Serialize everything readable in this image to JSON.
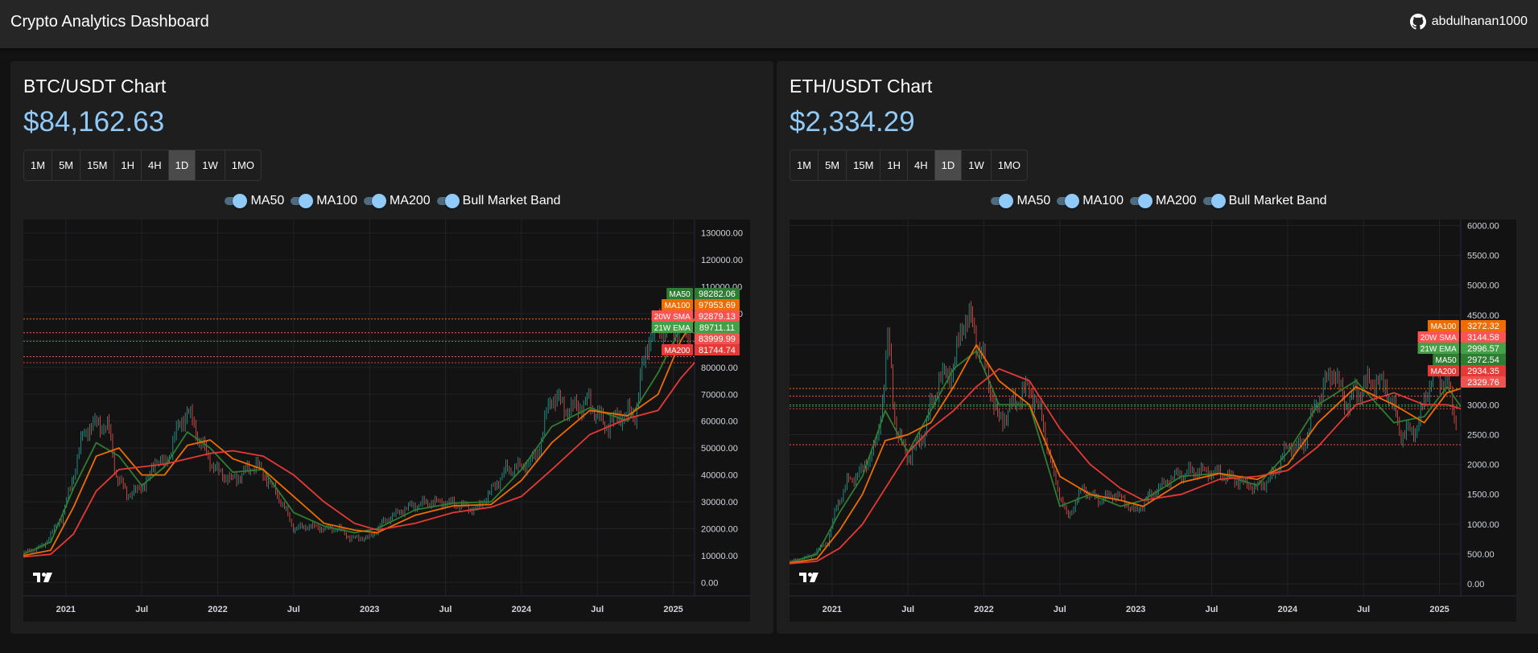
{
  "header": {
    "title": "Crypto Analytics Dashboard",
    "github_icon": "github-icon",
    "username": "abdulhanan1000"
  },
  "timeframes": [
    "1M",
    "5M",
    "15M",
    "1H",
    "4H",
    "1D",
    "1W",
    "1MO"
  ],
  "active_timeframe": "1D",
  "indicator_toggles": [
    "MA50",
    "MA100",
    "MA200",
    "Bull Market Band"
  ],
  "colors": {
    "background": "#121212",
    "card": "#1e1e1e",
    "price": "#90caf9",
    "up": "#26a69a",
    "down": "#ef5350",
    "ma50": "#2e7d32",
    "ma100": "#ef6c00",
    "ma200": "#e53935",
    "sma20w": "#ff5252",
    "ema21w": "#43a047"
  },
  "chart_data": [
    {
      "type": "line",
      "title": "BTC/USDT Chart",
      "price": "$84,162.63",
      "x_tick_labels": [
        "2021",
        "Jul",
        "2022",
        "Jul",
        "2023",
        "Jul",
        "2024",
        "Jul",
        "2025"
      ],
      "y_tick_labels": [
        "130000.00",
        "120000.00",
        "110000.00",
        "100000.00",
        "90000.00",
        "80000.00",
        "70000.00",
        "60000.00",
        "50000.00",
        "40000.00",
        "30000.00",
        "20000.00",
        "10000.00",
        "0.00"
      ],
      "ylim": [
        -5000,
        135000
      ],
      "grid": true,
      "series": [
        {
          "name": "Price",
          "x": [
            2020.72,
            2020.85,
            2020.97,
            2021.03,
            2021.08,
            2021.13,
            2021.2,
            2021.28,
            2021.33,
            2021.4,
            2021.47,
            2021.55,
            2021.6,
            2021.65,
            2021.72,
            2021.8,
            2021.85,
            2021.93,
            2022.0,
            2022.1,
            2022.25,
            2022.33,
            2022.42,
            2022.5,
            2022.6,
            2022.7,
            2022.8,
            2022.87,
            2023.0,
            2023.1,
            2023.25,
            2023.4,
            2023.55,
            2023.7,
            2023.8,
            2023.9,
            2024.0,
            2024.1,
            2024.2,
            2024.3,
            2024.45,
            2024.55,
            2024.65,
            2024.75,
            2024.83,
            2024.9,
            2025.0,
            2025.08,
            2025.14
          ],
          "y": [
            11000,
            13500,
            24000,
            35000,
            48000,
            57000,
            59000,
            58000,
            40000,
            33000,
            34000,
            39000,
            47000,
            43000,
            55000,
            64000,
            57000,
            47000,
            41000,
            38000,
            44000,
            38000,
            30000,
            20000,
            21000,
            20000,
            20000,
            16500,
            16600,
            23000,
            28000,
            30000,
            29500,
            27000,
            34000,
            42000,
            43000,
            47000,
            70000,
            64000,
            67000,
            58000,
            62000,
            63000,
            90000,
            96000,
            95000,
            97000,
            84162
          ]
        },
        {
          "name": "MA50",
          "x": [
            2020.72,
            2020.9,
            2021.05,
            2021.2,
            2021.35,
            2021.5,
            2021.65,
            2021.8,
            2021.95,
            2022.1,
            2022.3,
            2022.5,
            2022.7,
            2022.9,
            2023.05,
            2023.3,
            2023.55,
            2023.8,
            2024.0,
            2024.2,
            2024.45,
            2024.7,
            2024.9,
            2025.05,
            2025.14
          ],
          "y": [
            10500,
            15000,
            35000,
            52000,
            47000,
            36000,
            43000,
            56000,
            50000,
            41000,
            42000,
            26000,
            21000,
            18500,
            20000,
            27000,
            29500,
            30000,
            42000,
            58000,
            65000,
            60000,
            78000,
            95000,
            98282
          ]
        },
        {
          "name": "MA100",
          "x": [
            2020.72,
            2020.9,
            2021.05,
            2021.2,
            2021.35,
            2021.5,
            2021.65,
            2021.8,
            2021.95,
            2022.1,
            2022.3,
            2022.5,
            2022.7,
            2022.9,
            2023.05,
            2023.3,
            2023.55,
            2023.8,
            2024.0,
            2024.2,
            2024.45,
            2024.7,
            2024.9,
            2025.05,
            2025.14
          ],
          "y": [
            10000,
            12000,
            28000,
            47000,
            50000,
            40000,
            40000,
            51000,
            53000,
            46000,
            42000,
            32000,
            22000,
            19500,
            18500,
            25000,
            28500,
            29000,
            38000,
            52000,
            64000,
            62000,
            70000,
            90000,
            97953
          ]
        },
        {
          "name": "MA200",
          "x": [
            2020.72,
            2020.9,
            2021.05,
            2021.2,
            2021.35,
            2021.5,
            2021.65,
            2021.8,
            2021.95,
            2022.1,
            2022.3,
            2022.5,
            2022.7,
            2022.9,
            2023.05,
            2023.3,
            2023.55,
            2023.8,
            2024.0,
            2024.2,
            2024.45,
            2024.7,
            2024.9,
            2025.05,
            2025.14
          ],
          "y": [
            9500,
            10500,
            18000,
            34000,
            42000,
            43000,
            44000,
            46000,
            48000,
            49000,
            47000,
            40000,
            30000,
            22000,
            19500,
            22000,
            26000,
            28000,
            32000,
            42000,
            55000,
            61000,
            64000,
            76000,
            81744
          ]
        }
      ],
      "price_labels": [
        {
          "label": "MA50",
          "value": "98282.06",
          "color": "#2e7d32"
        },
        {
          "label": "MA100",
          "value": "97953.69",
          "color": "#ef6c00"
        },
        {
          "label": "20W SMA",
          "value": "92879.13",
          "color": "#ff5252"
        },
        {
          "label": "21W EMA",
          "value": "89711.11",
          "color": "#43a047"
        },
        {
          "label": "",
          "value": "83999.99",
          "color": "#ef5350"
        },
        {
          "label": "MA200",
          "value": "81744.74",
          "color": "#e53935"
        }
      ],
      "horizontal_lines": [
        {
          "y": 98000,
          "color": "#ef6c00"
        },
        {
          "y": 92879,
          "color": "#ff5252"
        },
        {
          "y": 89711,
          "color": "#43a047"
        },
        {
          "y": 84000,
          "color": "#ef5350"
        },
        {
          "y": 81744,
          "color": "#e53935"
        }
      ]
    },
    {
      "type": "line",
      "title": "ETH/USDT Chart",
      "price": "$2,334.29",
      "x_tick_labels": [
        "2021",
        "Jul",
        "2022",
        "Jul",
        "2023",
        "Jul",
        "2024",
        "Jul",
        "2025"
      ],
      "y_tick_labels": [
        "6000.00",
        "5500.00",
        "5000.00",
        "4500.00",
        "4000.00",
        "3500.00",
        "3000.00",
        "2500.00",
        "2000.00",
        "1500.00",
        "1000.00",
        "500.00",
        "0.00"
      ],
      "ylim": [
        -200,
        6100
      ],
      "grid": true,
      "series": [
        {
          "name": "Price",
          "x": [
            2020.72,
            2020.85,
            2020.97,
            2021.03,
            2021.1,
            2021.2,
            2021.3,
            2021.37,
            2021.42,
            2021.5,
            2021.6,
            2021.7,
            2021.8,
            2021.87,
            2021.93,
            2022.0,
            2022.1,
            2022.22,
            2022.3,
            2022.38,
            2022.45,
            2022.55,
            2022.65,
            2022.75,
            2022.87,
            2023.0,
            2023.1,
            2023.25,
            2023.4,
            2023.55,
            2023.7,
            2023.8,
            2023.9,
            2024.0,
            2024.1,
            2024.2,
            2024.3,
            2024.38,
            2024.45,
            2024.55,
            2024.65,
            2024.75,
            2024.85,
            2024.95,
            2025.05,
            2025.14
          ],
          "y": [
            370,
            450,
            700,
            1300,
            1700,
            1900,
            2400,
            4100,
            2600,
            2100,
            2500,
            3400,
            3600,
            4500,
            4300,
            3700,
            2700,
            3100,
            3300,
            2800,
            1900,
            1100,
            1600,
            1400,
            1500,
            1200,
            1500,
            1800,
            1900,
            1850,
            1700,
            1600,
            1800,
            2300,
            2300,
            3100,
            3600,
            3000,
            3200,
            3400,
            3300,
            2500,
            2600,
            3500,
            3400,
            2334
          ]
        },
        {
          "name": "MA50",
          "x": [
            2020.72,
            2020.9,
            2021.05,
            2021.2,
            2021.35,
            2021.5,
            2021.65,
            2021.8,
            2021.95,
            2022.1,
            2022.3,
            2022.5,
            2022.7,
            2022.9,
            2023.05,
            2023.3,
            2023.55,
            2023.8,
            2024.0,
            2024.2,
            2024.45,
            2024.7,
            2024.9,
            2025.05,
            2025.14
          ],
          "y": [
            360,
            500,
            1200,
            1800,
            2900,
            2200,
            2900,
            3600,
            3900,
            3000,
            3000,
            1300,
            1500,
            1300,
            1400,
            1800,
            1850,
            1650,
            2200,
            3000,
            3400,
            2700,
            2800,
            3300,
            2972
          ]
        },
        {
          "name": "MA100",
          "x": [
            2020.72,
            2020.9,
            2021.05,
            2021.2,
            2021.35,
            2021.5,
            2021.65,
            2021.8,
            2021.95,
            2022.1,
            2022.3,
            2022.5,
            2022.7,
            2022.9,
            2023.05,
            2023.3,
            2023.55,
            2023.8,
            2024.0,
            2024.2,
            2024.45,
            2024.7,
            2024.9,
            2025.05,
            2025.14
          ],
          "y": [
            350,
            420,
            900,
            1500,
            2400,
            2500,
            2700,
            3300,
            4000,
            3400,
            3000,
            1800,
            1500,
            1400,
            1300,
            1700,
            1850,
            1750,
            2000,
            2700,
            3300,
            3000,
            2700,
            3200,
            3272
          ]
        },
        {
          "name": "MA200",
          "x": [
            2020.72,
            2020.9,
            2021.05,
            2021.2,
            2021.35,
            2021.5,
            2021.65,
            2021.8,
            2021.95,
            2022.1,
            2022.3,
            2022.5,
            2022.7,
            2022.9,
            2023.05,
            2023.3,
            2023.55,
            2023.8,
            2024.0,
            2024.2,
            2024.45,
            2024.7,
            2024.9,
            2025.05,
            2025.14
          ],
          "y": [
            340,
            380,
            600,
            1000,
            1600,
            2200,
            2600,
            2900,
            3300,
            3600,
            3400,
            2600,
            2000,
            1600,
            1400,
            1500,
            1750,
            1800,
            1900,
            2300,
            3000,
            3200,
            3000,
            3000,
            2934
          ]
        }
      ],
      "price_labels": [
        {
          "label": "MA100",
          "value": "3272.32",
          "color": "#ef6c00"
        },
        {
          "label": "20W SMA",
          "value": "3144.58",
          "color": "#ff5252"
        },
        {
          "label": "21W EMA",
          "value": "2996.57",
          "color": "#43a047"
        },
        {
          "label": "MA50",
          "value": "2972.54",
          "color": "#2e7d32"
        },
        {
          "label": "MA200",
          "value": "2934.35",
          "color": "#e53935"
        },
        {
          "label": "",
          "value": "2329.76",
          "color": "#ef5350"
        }
      ],
      "horizontal_lines": [
        {
          "y": 3272,
          "color": "#ef6c00"
        },
        {
          "y": 3144,
          "color": "#ff5252"
        },
        {
          "y": 2996,
          "color": "#43a047"
        },
        {
          "y": 2972,
          "color": "#2e7d32"
        },
        {
          "y": 2934,
          "color": "#e53935"
        },
        {
          "y": 2330,
          "color": "#ef5350"
        }
      ]
    }
  ]
}
